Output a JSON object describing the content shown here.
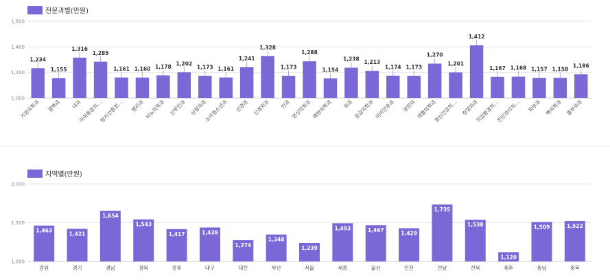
{
  "chart_data": [
    {
      "type": "bar",
      "legend": "전문과별(만원)",
      "color": "#7b68d6",
      "ylim": [
        1000,
        1600
      ],
      "yticks": [
        "1,000",
        "1,200",
        "1,400",
        "1,600"
      ],
      "categories": [
        "가정의학과",
        "결핵과",
        "내과",
        "마취통증의…",
        "방사선종양…",
        "병리과",
        "비뇨의학과",
        "산부인과",
        "성형외과",
        "소아청소년과",
        "신경과",
        "신경외과",
        "안과",
        "영상의학과",
        "예방의학과",
        "외과",
        "응급의학과",
        "이비인후과",
        "영민의",
        "재활의학과",
        "정신건강의…",
        "정형외과",
        "직업환경의…",
        "진단검사의…",
        "피부과",
        "핵의학과",
        "흉부외과"
      ],
      "values": [
        1234,
        1155,
        1316,
        1285,
        1161,
        1160,
        1178,
        1202,
        1173,
        1161,
        1241,
        1328,
        1173,
        1288,
        1154,
        1238,
        1213,
        1174,
        1173,
        1270,
        1201,
        1412,
        1167,
        1168,
        1157,
        1158,
        1186
      ],
      "value_labels": [
        "1,234",
        "1,155",
        "1,316",
        "1,285",
        "1,161",
        "1,160",
        "1,178",
        "1,202",
        "1,173",
        "1,161",
        "1,241",
        "1,328",
        "1,173",
        "1,288",
        "1,154",
        "1,238",
        "1,213",
        "1,174",
        "1,173",
        "1,270",
        "1,201",
        "1,412",
        "1,167",
        "1,168",
        "1,157",
        "1,158",
        "1,186"
      ],
      "label_position": "above"
    },
    {
      "type": "bar",
      "legend": "지역별(만원)",
      "color": "#7b68d6",
      "ylim": [
        1000,
        2000
      ],
      "yticks": [
        "1,000",
        "1,500",
        "2,000"
      ],
      "categories": [
        "강원",
        "경기",
        "경남",
        "경북",
        "광주",
        "대구",
        "대전",
        "부산",
        "서울",
        "세종",
        "울산",
        "인천",
        "전남",
        "전북",
        "제주",
        "충남",
        "충북"
      ],
      "values": [
        1463,
        1421,
        1654,
        1543,
        1417,
        1438,
        1274,
        1348,
        1239,
        1493,
        1467,
        1429,
        1735,
        1538,
        1120,
        1509,
        1522
      ],
      "value_labels": [
        "1,463",
        "1,421",
        "1,654",
        "1,543",
        "1,417",
        "1,438",
        "1,274",
        "1,348",
        "1,239",
        "1,493",
        "1,467",
        "1,429",
        "1,735",
        "1,538",
        "1,120",
        "1,509",
        "1,522"
      ],
      "label_position": "inside"
    }
  ]
}
